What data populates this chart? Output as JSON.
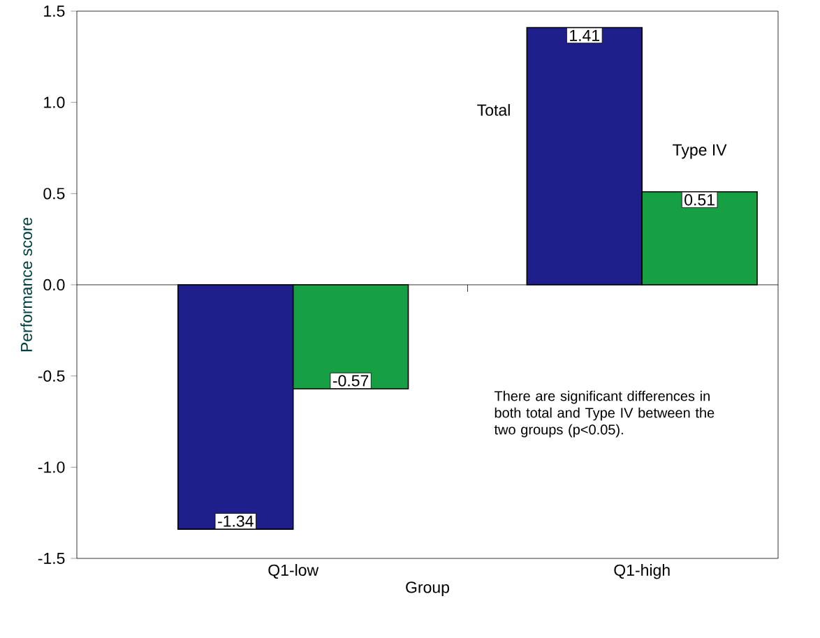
{
  "chart_data": {
    "type": "bar",
    "xlabel": "Group",
    "ylabel": "Performance score",
    "categories": [
      "Q1-low",
      "Q1-high"
    ],
    "series": [
      {
        "name": "Total",
        "color": "#1f1f8c",
        "values": [
          -1.34,
          1.41
        ],
        "value_labels": [
          "-1.34",
          "1.41"
        ]
      },
      {
        "name": "Type IV",
        "color": "#17a043",
        "values": [
          -0.57,
          0.51
        ],
        "value_labels": [
          "-0.57",
          "0.51"
        ]
      }
    ],
    "ylim": [
      -1.5,
      1.5
    ],
    "yticks": [
      {
        "value": -1.5,
        "label": "-1.5"
      },
      {
        "value": -1,
        "label": "-1.0"
      },
      {
        "value": -0.5,
        "label": "-0.5"
      },
      {
        "value": 0,
        "label": "0.0"
      },
      {
        "value": 0.5,
        "label": "0.5"
      },
      {
        "value": 1,
        "label": "1.0"
      },
      {
        "value": 1.5,
        "label": "1.5"
      }
    ],
    "annotations": [
      "There are significant differences in both total and Type IV between the two groups (p<0.05)."
    ]
  }
}
